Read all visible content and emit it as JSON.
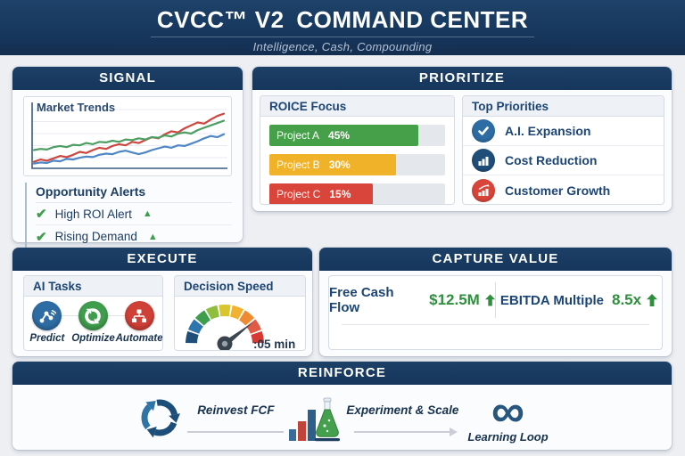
{
  "header": {
    "title_strong": "CVCC™ V2",
    "title_rest": "COMMAND CENTER",
    "subtitle": "Intelligence, Cash, Compounding"
  },
  "panels": {
    "signal": {
      "title": "SIGNAL",
      "chart_title": "Market Trends",
      "alerts_title": "Opportunity Alerts",
      "alerts": [
        {
          "label": "High ROI Alert",
          "check": "✔",
          "trend": "▲"
        },
        {
          "label": "Rising Demand",
          "check": "✔",
          "trend": "▲"
        }
      ]
    },
    "prioritize": {
      "title": "PRIORITIZE",
      "roice": {
        "title": "ROICE Focus"
      },
      "top_priorities": {
        "title": "Top Priorities",
        "items": [
          {
            "label": "A.I. Expansion",
            "icon": "check-icon",
            "color": "#2e6da4"
          },
          {
            "label": "Cost Reduction",
            "icon": "bar-chart-icon",
            "color": "#1f4e79"
          },
          {
            "label": "Customer Growth",
            "icon": "growth-chart-icon",
            "color": "#d9453a"
          }
        ]
      }
    },
    "execute": {
      "title": "EXECUTE",
      "ai_tasks": {
        "title": "AI Tasks",
        "items": [
          {
            "label": "Predict",
            "icon": "network-icon",
            "color": "#2e6da4"
          },
          {
            "label": "Optimize",
            "icon": "recycle-icon",
            "color": "#3f9e4d"
          },
          {
            "label": "Automate",
            "icon": "org-chart-icon",
            "color": "#cf4037"
          }
        ]
      },
      "decision_speed": {
        "title": "Decision Speed",
        "reading": ":05 min"
      }
    },
    "capture_value": {
      "title": "CAPTURE VALUE",
      "metrics": [
        {
          "label": "Free Cash Flow",
          "value": "$12.5M",
          "trend": "up"
        },
        {
          "label": "EBITDA Multiple",
          "value": "8.5x",
          "trend": "up"
        }
      ]
    },
    "reinforce": {
      "title": "REINFORCE",
      "steps": [
        {
          "label": "Reinvest FCF",
          "icon": "cycle-icon"
        },
        {
          "label": "Experiment & Scale",
          "icon": "experiment-flask-icon"
        },
        {
          "label": "Learning Loop",
          "icon": "infinity-icon"
        }
      ],
      "infinity_glyph": "∞"
    }
  },
  "chart_data": [
    {
      "type": "line",
      "title": "Market Trends",
      "xlabel": "",
      "ylabel": "",
      "ylim": [
        0,
        100
      ],
      "grid": true,
      "legend": "none",
      "series": [
        {
          "name": "red-trend",
          "color": "#d0453e",
          "values": [
            8,
            12,
            10,
            14,
            18,
            16,
            20,
            25,
            23,
            28,
            32,
            30,
            35,
            38,
            36,
            42,
            40,
            45,
            50,
            48,
            55,
            60,
            58,
            65,
            70,
            75,
            73,
            80,
            86,
            90
          ]
        },
        {
          "name": "green-trend",
          "color": "#4d9e63",
          "values": [
            28,
            30,
            29,
            33,
            35,
            33,
            37,
            36,
            40,
            38,
            42,
            41,
            44,
            42,
            46,
            45,
            48,
            46,
            50,
            49,
            53,
            51,
            56,
            58,
            56,
            62,
            66,
            70,
            74,
            78
          ]
        },
        {
          "name": "blue-trend",
          "color": "#4e86c6",
          "values": [
            5,
            7,
            6,
            10,
            9,
            13,
            12,
            15,
            17,
            16,
            20,
            22,
            21,
            25,
            27,
            24,
            21,
            24,
            28,
            31,
            34,
            32,
            36,
            35,
            39,
            43,
            48,
            52,
            50,
            55
          ]
        }
      ]
    },
    {
      "type": "bar",
      "title": "ROICE Focus",
      "orientation": "horizontal",
      "categories": [
        "Project A",
        "Project B",
        "Project C"
      ],
      "values": [
        45,
        30,
        15
      ],
      "value_labels": [
        "45%",
        "30%",
        "15%"
      ],
      "bar_colors": [
        "#46a04a",
        "#f0b228",
        "#d9453a"
      ],
      "bar_fill_pct": [
        85,
        72,
        59
      ]
    },
    {
      "type": "gauge",
      "title": "Decision Speed",
      "reading": ":05 min",
      "segments": [
        "#1f4e79",
        "#2e74ad",
        "#3f9e4d",
        "#8fbe3f",
        "#d9c62f",
        "#f2b12e",
        "#ee8a31",
        "#e05a44",
        "#d63a33"
      ]
    }
  ],
  "colors": {
    "header_bg": "#17365d",
    "panel_header_bg": "#17375e",
    "page_bg": "#edeff3",
    "navy_text": "#1c4575",
    "positive_green": "#2f8f3e",
    "alert_green": "#3f9e4d"
  }
}
